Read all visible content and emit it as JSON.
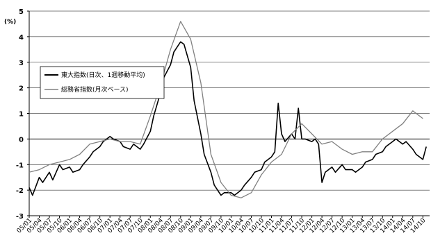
{
  "chart_data": {
    "type": "line",
    "unit_label": "(%)",
    "ylim": [
      -3,
      5
    ],
    "y_ticks": [
      -3,
      -2,
      -1,
      0,
      1,
      2,
      3,
      4,
      5
    ],
    "x_ticks": [
      "05/01",
      "05/04",
      "05/07",
      "05/10",
      "06/01",
      "06/04",
      "06/07",
      "06/10",
      "07/01",
      "07/04",
      "07/07",
      "07/10",
      "08/01",
      "08/04",
      "08/07",
      "08/10",
      "09/01",
      "09/04",
      "09/07",
      "09/10",
      "10/01",
      "10/04",
      "10/07",
      "10/10",
      "11/01",
      "11/04",
      "11/07",
      "11/10",
      "12/01",
      "12/04",
      "12/07",
      "12/10",
      "13/01",
      "13/04",
      "13/07",
      "13/10",
      "14/01",
      "14/04",
      "14/07",
      "14/10"
    ],
    "grid": "horizontal",
    "legend_position": "upper-left",
    "series": [
      {
        "name": "東大指数(日次、1週移動平均)",
        "color": "#000000",
        "points": [
          [
            "05/01",
            -1.9
          ],
          [
            "05/02",
            -2.2
          ],
          [
            "05/04",
            -1.5
          ],
          [
            "05/05",
            -1.7
          ],
          [
            "05/07",
            -1.3
          ],
          [
            "05/08",
            -1.6
          ],
          [
            "05/10",
            -1.0
          ],
          [
            "05/11",
            -1.2
          ],
          [
            "06/01",
            -1.1
          ],
          [
            "06/02",
            -1.3
          ],
          [
            "06/04",
            -1.2
          ],
          [
            "06/05",
            -1.0
          ],
          [
            "06/07",
            -0.7
          ],
          [
            "06/08",
            -0.5
          ],
          [
            "06/10",
            -0.3
          ],
          [
            "06/11",
            -0.1
          ],
          [
            "07/01",
            0.1
          ],
          [
            "07/02",
            0.0
          ],
          [
            "07/04",
            -0.1
          ],
          [
            "07/05",
            -0.3
          ],
          [
            "07/07",
            -0.4
          ],
          [
            "07/08",
            -0.2
          ],
          [
            "07/10",
            -0.4
          ],
          [
            "07/11",
            -0.2
          ],
          [
            "08/01",
            0.3
          ],
          [
            "08/02",
            0.9
          ],
          [
            "08/04",
            1.8
          ],
          [
            "08/05",
            2.4
          ],
          [
            "08/07",
            2.9
          ],
          [
            "08/08",
            3.4
          ],
          [
            "08/10",
            3.8
          ],
          [
            "08/11",
            3.7
          ],
          [
            "09/01",
            2.8
          ],
          [
            "09/02",
            1.5
          ],
          [
            "09/04",
            0.2
          ],
          [
            "09/05",
            -0.6
          ],
          [
            "09/07",
            -1.3
          ],
          [
            "09/08",
            -1.8
          ],
          [
            "09/10",
            -2.2
          ],
          [
            "09/11",
            -2.1
          ],
          [
            "10/01",
            -2.1
          ],
          [
            "10/02",
            -2.2
          ],
          [
            "10/04",
            -2.0
          ],
          [
            "10/05",
            -1.8
          ],
          [
            "10/07",
            -1.5
          ],
          [
            "10/08",
            -1.3
          ],
          [
            "10/10",
            -1.2
          ],
          [
            "10/11",
            -0.9
          ],
          [
            "11/01",
            -0.7
          ],
          [
            "11/02",
            -0.5
          ],
          [
            "11/03",
            1.4
          ],
          [
            "11/04",
            0.2
          ],
          [
            "11/05",
            -0.1
          ],
          [
            "11/07",
            0.2
          ],
          [
            "11/08",
            0.0
          ],
          [
            "11/09",
            1.2
          ],
          [
            "11/10",
            0.0
          ],
          [
            "11/11",
            0.0
          ],
          [
            "12/01",
            -0.1
          ],
          [
            "12/02",
            0.0
          ],
          [
            "12/03",
            -0.2
          ],
          [
            "12/04",
            -1.7
          ],
          [
            "12/05",
            -1.3
          ],
          [
            "12/07",
            -1.1
          ],
          [
            "12/08",
            -1.3
          ],
          [
            "12/10",
            -1.0
          ],
          [
            "12/11",
            -1.2
          ],
          [
            "13/01",
            -1.2
          ],
          [
            "13/02",
            -1.3
          ],
          [
            "13/04",
            -1.1
          ],
          [
            "13/05",
            -0.9
          ],
          [
            "13/07",
            -0.8
          ],
          [
            "13/08",
            -0.6
          ],
          [
            "13/10",
            -0.5
          ],
          [
            "13/11",
            -0.3
          ],
          [
            "14/01",
            -0.1
          ],
          [
            "14/02",
            0.0
          ],
          [
            "14/04",
            -0.2
          ],
          [
            "14/05",
            -0.1
          ],
          [
            "14/07",
            -0.4
          ],
          [
            "14/08",
            -0.6
          ],
          [
            "14/10",
            -0.8
          ],
          [
            "14/11",
            -0.3
          ]
        ]
      },
      {
        "name": "総務省指数(月次ベース)",
        "color": "#808080",
        "points": [
          [
            "05/01",
            -1.3
          ],
          [
            "05/04",
            -1.2
          ],
          [
            "05/07",
            -1.0
          ],
          [
            "05/10",
            -0.9
          ],
          [
            "06/01",
            -0.8
          ],
          [
            "06/04",
            -0.6
          ],
          [
            "06/07",
            -0.2
          ],
          [
            "06/10",
            -0.1
          ],
          [
            "07/01",
            0.0
          ],
          [
            "07/04",
            -0.1
          ],
          [
            "07/07",
            -0.1
          ],
          [
            "07/10",
            -0.2
          ],
          [
            "08/01",
            0.9
          ],
          [
            "08/04",
            2.1
          ],
          [
            "08/07",
            3.5
          ],
          [
            "08/10",
            4.6
          ],
          [
            "09/01",
            3.9
          ],
          [
            "09/04",
            2.2
          ],
          [
            "09/07",
            -0.6
          ],
          [
            "09/10",
            -1.7
          ],
          [
            "10/01",
            -2.2
          ],
          [
            "10/04",
            -2.3
          ],
          [
            "10/07",
            -2.1
          ],
          [
            "10/10",
            -1.4
          ],
          [
            "11/01",
            -0.9
          ],
          [
            "11/04",
            -0.6
          ],
          [
            "11/07",
            0.2
          ],
          [
            "11/10",
            0.6
          ],
          [
            "12/01",
            0.2
          ],
          [
            "12/04",
            -0.2
          ],
          [
            "12/07",
            -0.1
          ],
          [
            "12/10",
            -0.4
          ],
          [
            "13/01",
            -0.6
          ],
          [
            "13/04",
            -0.5
          ],
          [
            "13/07",
            -0.5
          ],
          [
            "13/10",
            0.0
          ],
          [
            "14/01",
            0.3
          ],
          [
            "14/04",
            0.6
          ],
          [
            "14/07",
            1.1
          ],
          [
            "14/10",
            0.8
          ]
        ]
      }
    ]
  }
}
